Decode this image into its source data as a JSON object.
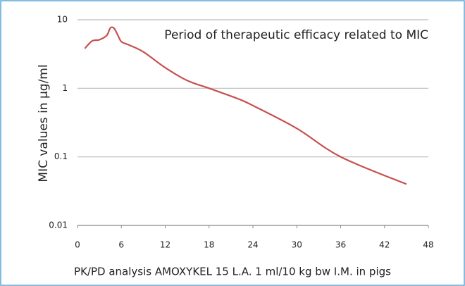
{
  "chart_data": {
    "type": "line",
    "annotation": "Period of therapeutic efficacy related to MIC",
    "y_label": "MIC values in µg/ml",
    "caption": "PK/PD analysis AMOXYKEL 15 L.A.  1 ml/10 kg bw I.M. in pigs",
    "x": [
      1,
      2,
      3,
      4,
      4.5,
      5,
      5.5,
      6,
      7,
      9,
      12,
      15,
      18,
      22,
      24,
      30,
      36,
      45
    ],
    "series": [
      {
        "color": "#c8504e",
        "values": [
          3.8,
          4.9,
          5.1,
          5.9,
          7.6,
          7.5,
          6.0,
          4.8,
          4.3,
          3.4,
          2.0,
          1.3,
          1.0,
          0.7,
          0.56,
          0.26,
          0.1,
          0.04
        ]
      }
    ],
    "xlim": [
      0,
      48
    ],
    "xticks": [
      0,
      6,
      12,
      18,
      24,
      30,
      36,
      42,
      48
    ],
    "ylim": [
      0.01,
      10
    ],
    "yticks": [
      0.01,
      0.1,
      1,
      10
    ],
    "yscale": "log",
    "grid": true
  }
}
